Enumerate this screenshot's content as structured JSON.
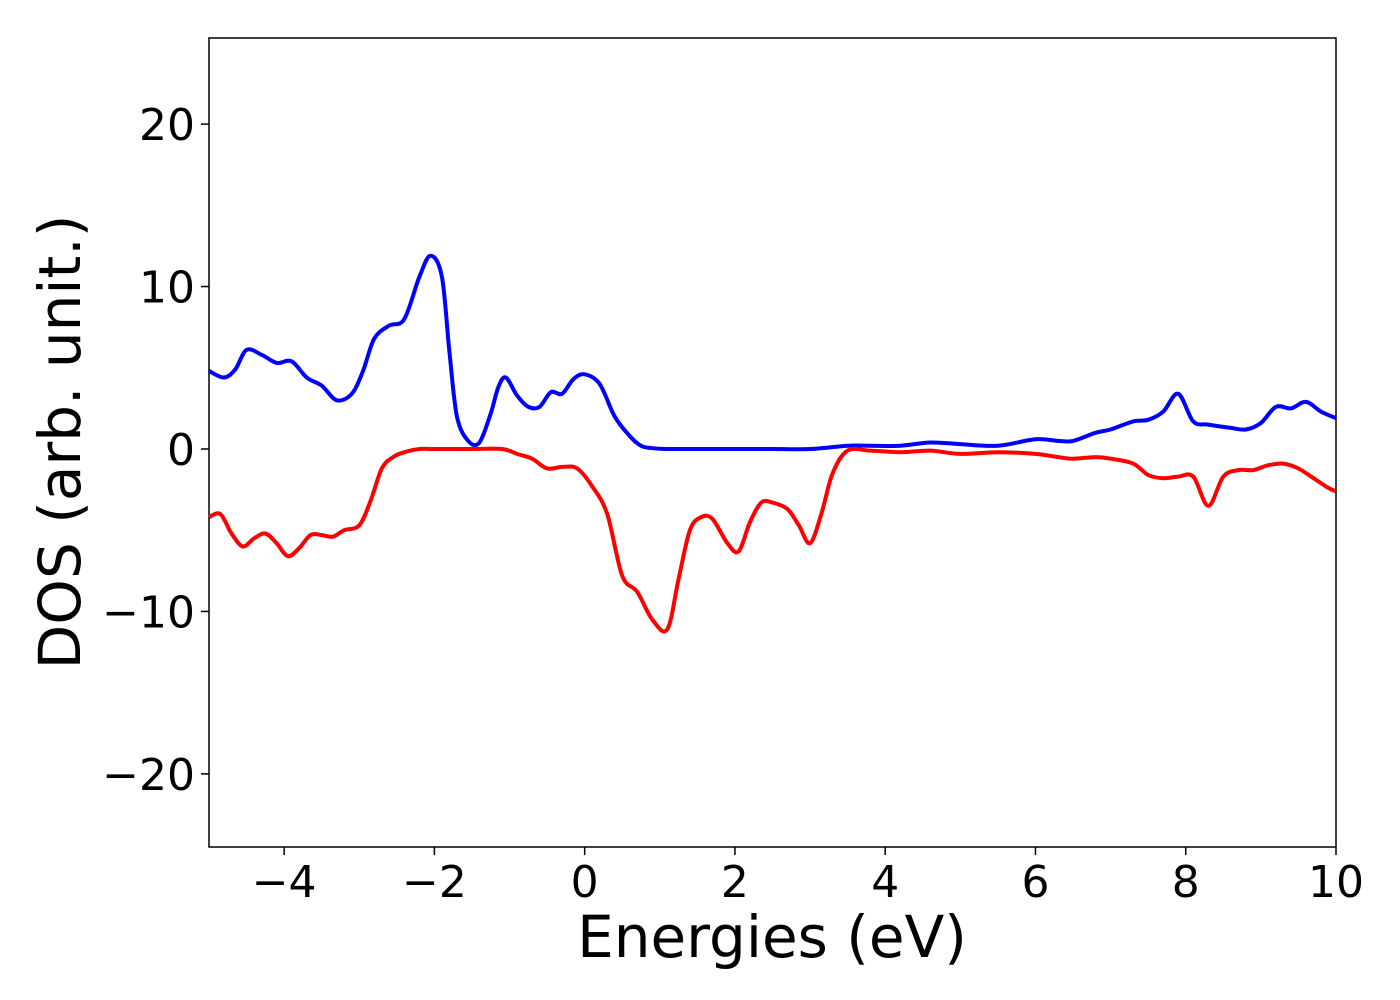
{
  "chart_data": {
    "type": "line",
    "title": "",
    "xlabel": "Energies (eV)",
    "ylabel": "DOS (arb. unit.)",
    "xlim": [
      -5,
      10
    ],
    "ylim": [
      -24.5,
      25.3
    ],
    "xticks": [
      -4,
      -2,
      0,
      2,
      4,
      6,
      8,
      10
    ],
    "yticks": [
      -20,
      -10,
      0,
      10,
      20
    ],
    "xtick_labels": [
      "−4",
      "−2",
      "0",
      "2",
      "4",
      "6",
      "8",
      "10"
    ],
    "ytick_labels": [
      "−20",
      "−10",
      "0",
      "10",
      "20"
    ],
    "grid": false,
    "legend": "none",
    "series": [
      {
        "color": "#0000ff",
        "x": [
          -5.0,
          -4.8,
          -4.65,
          -4.5,
          -4.3,
          -4.1,
          -3.9,
          -3.7,
          -3.5,
          -3.3,
          -3.1,
          -2.95,
          -2.8,
          -2.6,
          -2.4,
          -2.2,
          -2.05,
          -1.9,
          -1.8,
          -1.7,
          -1.55,
          -1.4,
          -1.25,
          -1.15,
          -1.05,
          -0.9,
          -0.75,
          -0.6,
          -0.45,
          -0.3,
          -0.15,
          0.0,
          0.2,
          0.4,
          0.6,
          0.75,
          0.9,
          1.1,
          1.3,
          1.5,
          1.7,
          2.0,
          2.5,
          3.0,
          3.5,
          3.8,
          4.2,
          4.6,
          5.0,
          5.5,
          6.0,
          6.3,
          6.5,
          6.8,
          7.0,
          7.3,
          7.5,
          7.7,
          7.9,
          8.1,
          8.3,
          8.6,
          8.8,
          9.0,
          9.2,
          9.4,
          9.6,
          9.8,
          10.0
        ],
        "y": [
          4.8,
          4.4,
          4.9,
          6.1,
          5.8,
          5.3,
          5.4,
          4.4,
          3.9,
          3.0,
          3.4,
          4.8,
          6.8,
          7.6,
          8.0,
          10.6,
          11.9,
          10.6,
          6.0,
          2.0,
          0.5,
          0.4,
          2.2,
          3.8,
          4.4,
          3.3,
          2.6,
          2.6,
          3.5,
          3.4,
          4.3,
          4.6,
          4.0,
          2.0,
          0.8,
          0.2,
          0.05,
          0.0,
          0.0,
          0.0,
          0.0,
          0.0,
          0.0,
          0.0,
          0.2,
          0.2,
          0.2,
          0.4,
          0.3,
          0.2,
          0.6,
          0.5,
          0.5,
          1.0,
          1.2,
          1.7,
          1.8,
          2.3,
          3.4,
          1.7,
          1.5,
          1.3,
          1.2,
          1.6,
          2.6,
          2.5,
          2.9,
          2.3,
          1.9
        ]
      },
      {
        "color": "#ff0000",
        "x": [
          -5.0,
          -4.85,
          -4.7,
          -4.55,
          -4.4,
          -4.25,
          -4.1,
          -3.95,
          -3.8,
          -3.65,
          -3.5,
          -3.35,
          -3.2,
          -3.0,
          -2.85,
          -2.7,
          -2.55,
          -2.4,
          -2.2,
          -2.0,
          -1.5,
          -1.1,
          -0.9,
          -0.7,
          -0.5,
          -0.3,
          -0.1,
          0.1,
          0.3,
          0.5,
          0.7,
          0.9,
          1.1,
          1.25,
          1.4,
          1.55,
          1.7,
          1.9,
          2.05,
          2.2,
          2.35,
          2.5,
          2.7,
          2.85,
          3.0,
          3.15,
          3.3,
          3.5,
          3.8,
          4.2,
          4.6,
          5.0,
          5.5,
          6.0,
          6.3,
          6.5,
          6.8,
          7.0,
          7.3,
          7.5,
          7.7,
          7.9,
          8.1,
          8.3,
          8.5,
          8.7,
          8.9,
          9.1,
          9.3,
          9.5,
          9.7,
          9.9,
          10.0
        ],
        "y": [
          -4.2,
          -4.0,
          -5.2,
          -6.0,
          -5.5,
          -5.2,
          -5.8,
          -6.6,
          -6.1,
          -5.3,
          -5.3,
          -5.4,
          -5.0,
          -4.7,
          -3.2,
          -1.2,
          -0.5,
          -0.2,
          0.0,
          0.0,
          0.0,
          0.0,
          -0.3,
          -0.6,
          -1.2,
          -1.1,
          -1.2,
          -2.3,
          -4.0,
          -7.8,
          -8.8,
          -10.5,
          -11.1,
          -8.0,
          -5.0,
          -4.2,
          -4.3,
          -5.8,
          -6.3,
          -4.5,
          -3.3,
          -3.3,
          -3.7,
          -4.7,
          -5.8,
          -4.0,
          -1.5,
          -0.1,
          -0.1,
          -0.2,
          -0.1,
          -0.3,
          -0.2,
          -0.3,
          -0.5,
          -0.6,
          -0.5,
          -0.6,
          -0.9,
          -1.6,
          -1.8,
          -1.7,
          -1.7,
          -3.5,
          -1.7,
          -1.3,
          -1.3,
          -1.0,
          -0.9,
          -1.2,
          -1.8,
          -2.4,
          -2.6
        ]
      }
    ]
  }
}
